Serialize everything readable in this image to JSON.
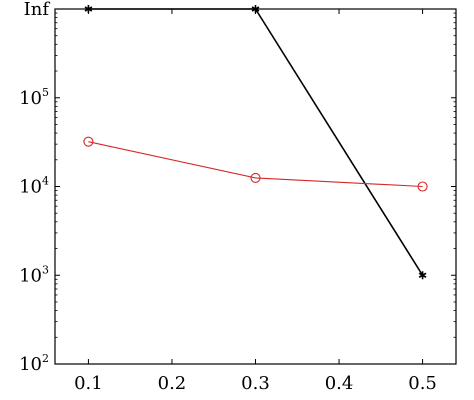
{
  "chart_data": {
    "type": "line",
    "title": "",
    "xlabel": "",
    "ylabel": "",
    "y_scale": "log",
    "x": [
      0.1,
      0.3,
      0.5
    ],
    "xlim": [
      0.06,
      0.54
    ],
    "ylim": [
      100,
      1000000
    ],
    "x_ticks": [
      {
        "value": 0.1,
        "label": "0.1"
      },
      {
        "value": 0.2,
        "label": "0.2"
      },
      {
        "value": 0.3,
        "label": "0.3"
      },
      {
        "value": 0.4,
        "label": "0.4"
      },
      {
        "value": 0.5,
        "label": "0.5"
      }
    ],
    "y_ticks": [
      {
        "value": 100,
        "base": "10",
        "exp": "2",
        "text": ""
      },
      {
        "value": 1000,
        "base": "10",
        "exp": "3",
        "text": ""
      },
      {
        "value": 10000,
        "base": "10",
        "exp": "4",
        "text": ""
      },
      {
        "value": 100000,
        "base": "10",
        "exp": "5",
        "text": ""
      },
      {
        "value": 1000000,
        "base": "",
        "exp": "",
        "text": "Inf"
      }
    ],
    "grid": false,
    "legend": "none",
    "series": [
      {
        "values": [
          1000000,
          1000000,
          1000
        ],
        "color": "#000000",
        "marker": "star"
      },
      {
        "values": [
          32000,
          12500,
          10000
        ],
        "color": "#d62728",
        "marker": "circle-open"
      }
    ]
  }
}
